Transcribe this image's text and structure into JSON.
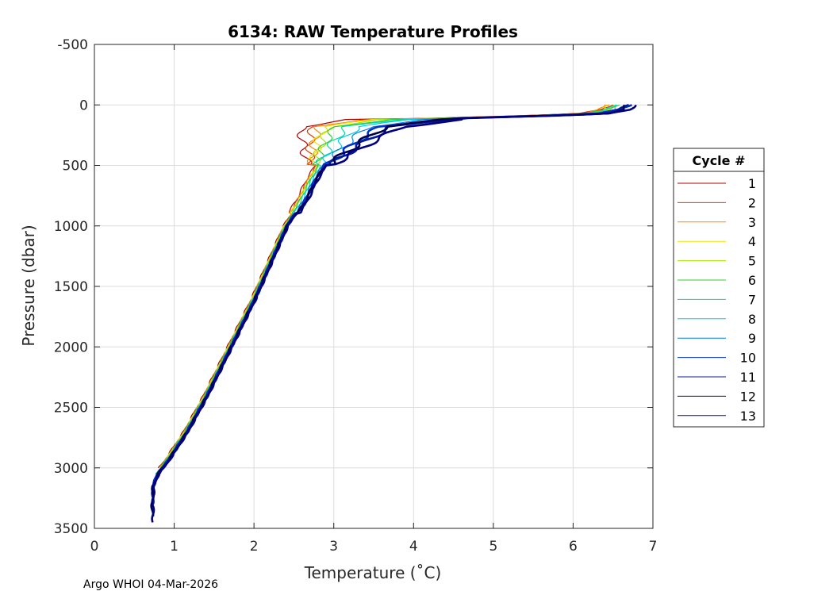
{
  "chart_data": {
    "type": "line",
    "title": "6134: RAW Temperature Profiles",
    "xlabel": "Temperature (˚C)",
    "ylabel": "Pressure (dbar)",
    "xlim": [
      0,
      7
    ],
    "ylim": [
      -500,
      3500
    ],
    "y_reversed": true,
    "grid": true,
    "x_ticks": [
      0,
      1,
      2,
      3,
      4,
      5,
      6,
      7
    ],
    "y_ticks": [
      -500,
      0,
      500,
      1000,
      1500,
      2000,
      2500,
      3000,
      3500
    ],
    "legend": {
      "title": "Cycle #",
      "placement": "outside-right"
    },
    "base_profile": {
      "temperature": [
        6.6,
        6.5,
        6.3,
        5.8,
        5.0,
        4.0,
        3.3,
        3.1,
        3.0,
        2.9,
        2.75,
        2.6,
        2.5,
        2.4,
        2.2,
        2.0,
        1.7,
        1.4,
        1.15,
        0.9,
        0.78,
        0.72,
        0.71,
        0.71
      ],
      "pressure": [
        0,
        40,
        70,
        85,
        100,
        120,
        180,
        300,
        380,
        450,
        600,
        800,
        900,
        1000,
        1300,
        1600,
        2000,
        2400,
        2700,
        2950,
        3050,
        3150,
        3300,
        3450
      ]
    },
    "series": [
      {
        "name": "1",
        "color": "#b30000",
        "max_pressure": 3000,
        "dt": -0.1
      },
      {
        "name": "2",
        "color": "#e03a00",
        "max_pressure": 3000,
        "dt": -0.08
      },
      {
        "name": "3",
        "color": "#f28c00",
        "max_pressure": 3000,
        "dt": -0.07
      },
      {
        "name": "4",
        "color": "#f2e000",
        "max_pressure": 3000,
        "dt": -0.06
      },
      {
        "name": "5",
        "color": "#a6e600",
        "max_pressure": 3000,
        "dt": -0.05
      },
      {
        "name": "6",
        "color": "#33cc33",
        "max_pressure": 3000,
        "dt": -0.04
      },
      {
        "name": "7",
        "color": "#00d9a6",
        "max_pressure": 3050,
        "dt": -0.02
      },
      {
        "name": "8",
        "color": "#00cce6",
        "max_pressure": 3050,
        "dt": 0.0
      },
      {
        "name": "9",
        "color": "#0080e6",
        "max_pressure": 3100,
        "dt": 0.02
      },
      {
        "name": "10",
        "color": "#0033cc",
        "max_pressure": 3200,
        "dt": 0.04
      },
      {
        "name": "11",
        "color": "#001a99",
        "max_pressure": 3300,
        "dt": 0.06
      },
      {
        "name": "12",
        "color": "#00004d",
        "max_pressure": 3400,
        "dt": 0.05
      },
      {
        "name": "13",
        "color": "#000080",
        "max_pressure": 3450,
        "dt": 0.08
      }
    ]
  },
  "footer": {
    "text": "Argo WHOI 04-Mar-2026"
  }
}
